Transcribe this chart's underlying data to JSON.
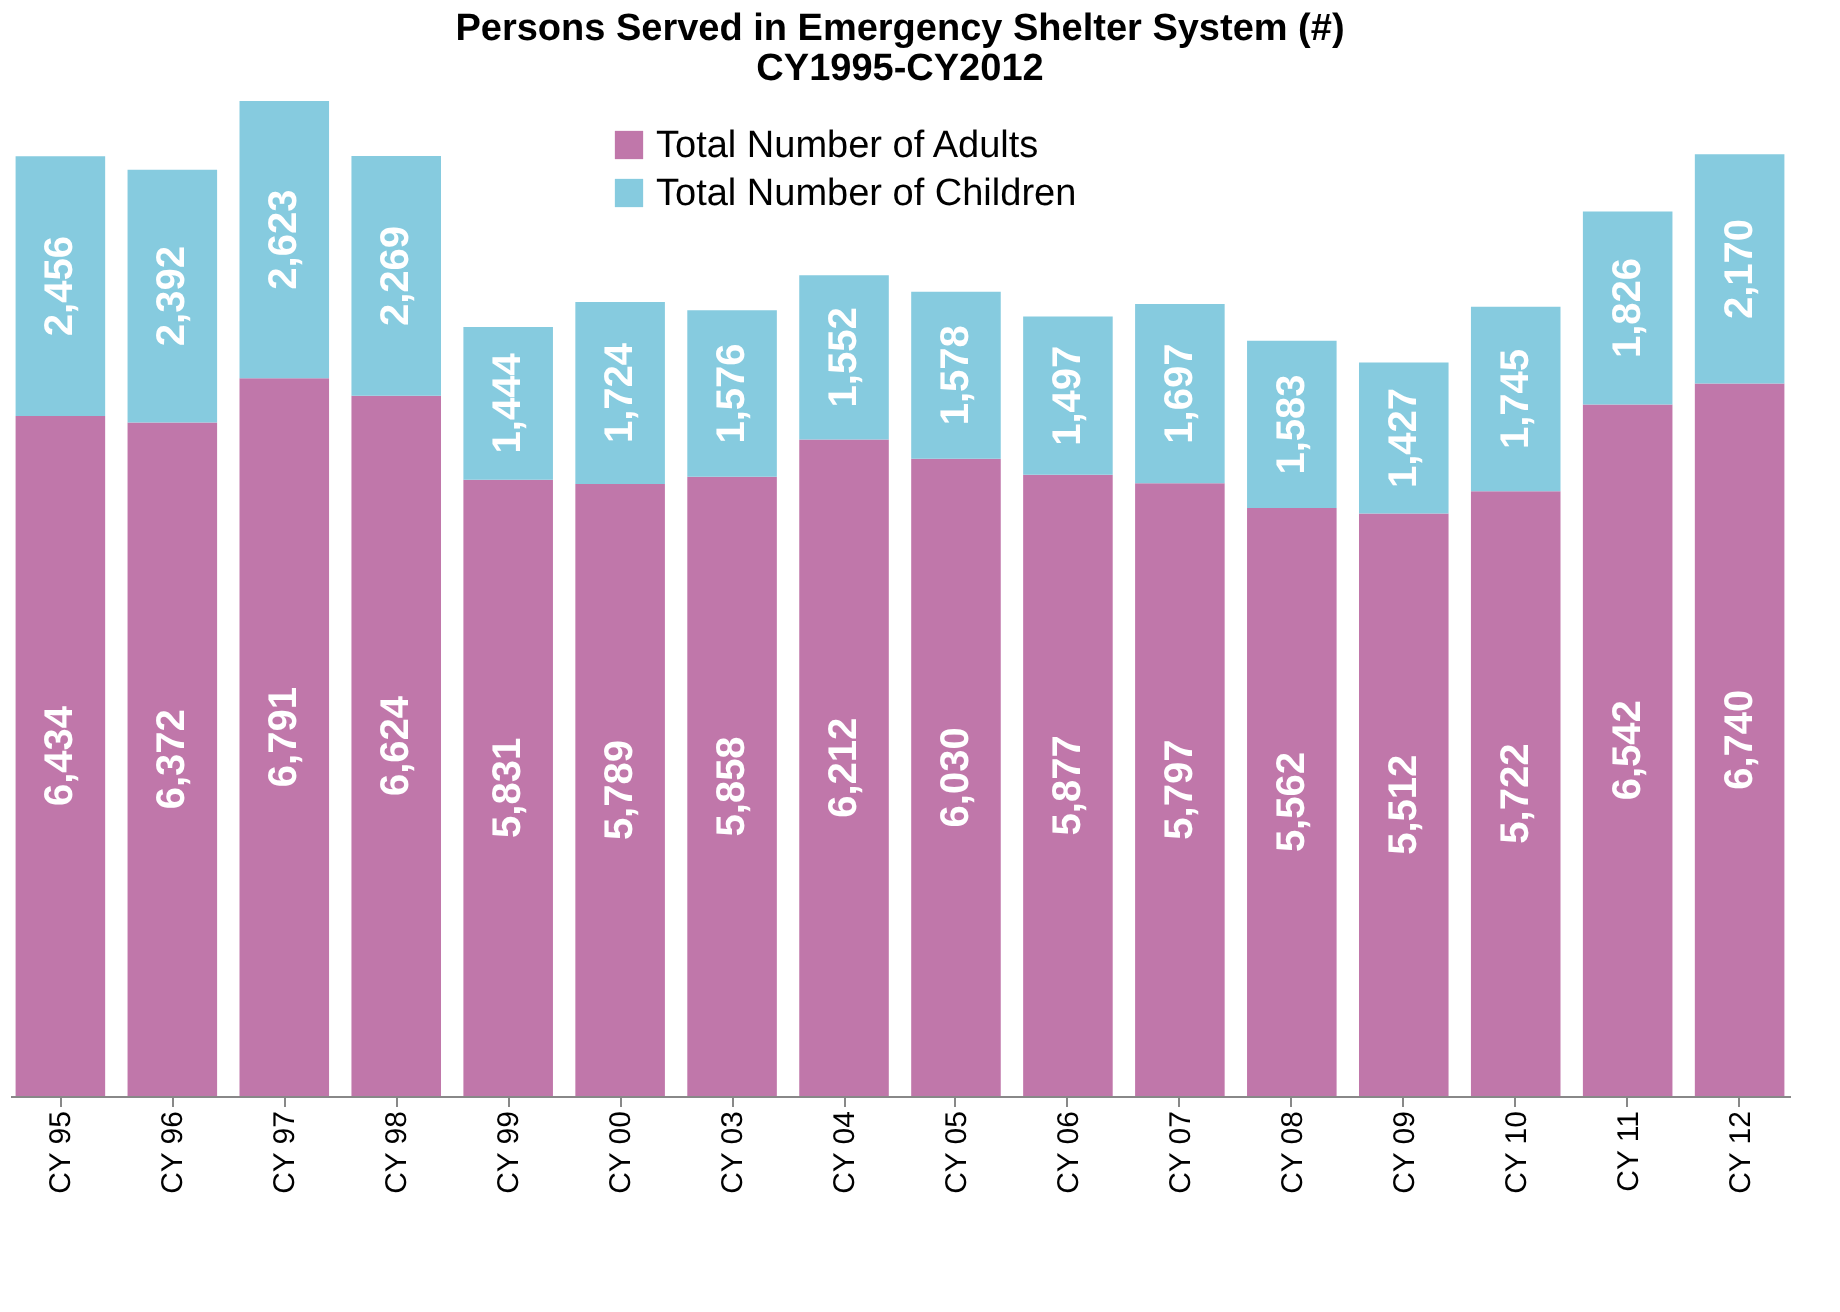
{
  "chart_data": {
    "type": "bar",
    "title": "Persons Served in Emergency Shelter System (#)",
    "subtitle": "CY1995-CY2012",
    "categories": [
      "CY 95",
      "CY 96",
      "CY 97",
      "CY 98",
      "CY 99",
      "CY 00",
      "CY 03",
      "CY 04",
      "CY 05",
      "CY 06",
      "CY 07",
      "CY 08",
      "CY 09",
      "CY 10",
      "CY 11",
      "CY 12"
    ],
    "series": [
      {
        "name": "Total Number of  Adults",
        "color": "#c077aa",
        "values": [
          6434,
          6372,
          6791,
          6624,
          5831,
          5789,
          5858,
          6212,
          6030,
          5877,
          5797,
          5562,
          5512,
          5722,
          6542,
          6740
        ],
        "value_labels": [
          "6,434",
          "6,372",
          "6,791",
          "6,624",
          "5,831",
          "5,789",
          "5,858",
          "6,212",
          "6,030",
          "5,877",
          "5,797",
          "5,562",
          "5,512",
          "5,722",
          "6,542",
          "6,740"
        ]
      },
      {
        "name": "Total Number of  Children",
        "color": "#86cbdf",
        "values": [
          2456,
          2392,
          2623,
          2269,
          1444,
          1724,
          1576,
          1552,
          1578,
          1497,
          1697,
          1583,
          1427,
          1745,
          1826,
          2170
        ],
        "value_labels": [
          "2,456",
          "2,392",
          "2,623",
          "2,269",
          "1,444",
          "1,724",
          "1,576",
          "1,552",
          "1,578",
          "1,497",
          "1,697",
          "1,583",
          "1,427",
          "1,745",
          "1,826",
          "2,170"
        ]
      }
    ],
    "stacked": true,
    "legend": "top",
    "tick_labels": "x"
  }
}
